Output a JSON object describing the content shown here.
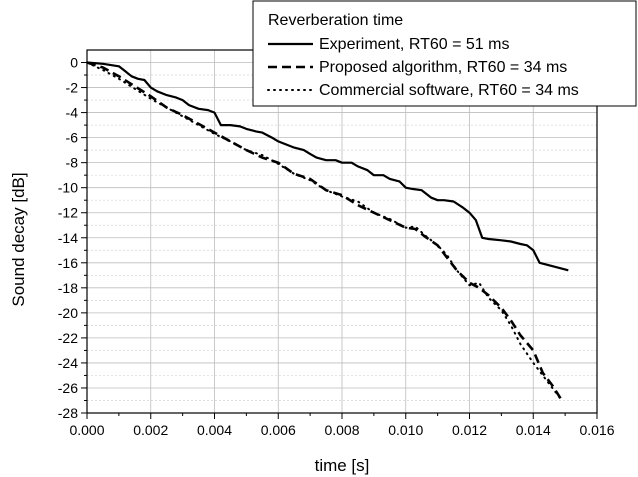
{
  "chart_data": {
    "type": "line",
    "xlabel": "time [s]",
    "ylabel": "Sound decay  [dB]",
    "xlim": [
      0,
      0.016
    ],
    "ylim": [
      -28,
      1
    ],
    "x_ticks": [
      "0.000",
      "0.002",
      "0.004",
      "0.006",
      "0.008",
      "0.010",
      "0.012",
      "0.014",
      "0.016"
    ],
    "y_ticks": [
      "0",
      "-2",
      "-4",
      "-6",
      "-8",
      "-10",
      "-12",
      "-14",
      "-16",
      "-18",
      "-20",
      "-22",
      "-24",
      "-26",
      "-28"
    ],
    "grid": true,
    "legend": {
      "title": "Reverberation time",
      "placement": "top-right"
    },
    "series": [
      {
        "name": "Experiment, RT60 = 51 ms",
        "style": "solid",
        "x": [
          0,
          0.0005,
          0.001,
          0.0012,
          0.0014,
          0.0016,
          0.0018,
          0.002,
          0.0022,
          0.0025,
          0.0028,
          0.003,
          0.0032,
          0.0035,
          0.0038,
          0.004,
          0.0042,
          0.0045,
          0.0048,
          0.005,
          0.0053,
          0.0055,
          0.0058,
          0.006,
          0.0062,
          0.0065,
          0.0068,
          0.007,
          0.0072,
          0.0075,
          0.0078,
          0.008,
          0.0083,
          0.0085,
          0.0088,
          0.009,
          0.0093,
          0.0095,
          0.0098,
          0.01,
          0.0102,
          0.0105,
          0.0108,
          0.011,
          0.0112,
          0.0115,
          0.0118,
          0.012,
          0.0122,
          0.0124,
          0.0126,
          0.013,
          0.0133,
          0.0136,
          0.0138,
          0.014,
          0.0142,
          0.0145,
          0.0148,
          0.0151
        ],
        "y": [
          0,
          -0.1,
          -0.3,
          -0.7,
          -1.1,
          -1.3,
          -1.4,
          -2.0,
          -2.3,
          -2.6,
          -2.8,
          -3.0,
          -3.4,
          -3.7,
          -3.8,
          -4.0,
          -5.0,
          -5.0,
          -5.1,
          -5.3,
          -5.5,
          -5.6,
          -6.0,
          -6.3,
          -6.5,
          -6.8,
          -7.0,
          -7.3,
          -7.6,
          -7.8,
          -7.8,
          -8.0,
          -8.0,
          -8.3,
          -8.6,
          -9.0,
          -9.0,
          -9.3,
          -9.5,
          -10.0,
          -10.1,
          -10.2,
          -10.8,
          -11.0,
          -11.0,
          -11.1,
          -11.6,
          -12.0,
          -12.6,
          -14.0,
          -14.1,
          -14.2,
          -14.3,
          -14.5,
          -14.6,
          -15.0,
          -16.0,
          -16.2,
          -16.4,
          -16.6
        ]
      },
      {
        "name": "Proposed algorithm, RT60 = 34 ms",
        "style": "dashed",
        "x": [
          0,
          0.0005,
          0.001,
          0.0015,
          0.002,
          0.0025,
          0.003,
          0.0035,
          0.004,
          0.0045,
          0.005,
          0.0055,
          0.006,
          0.0065,
          0.007,
          0.0075,
          0.008,
          0.0085,
          0.009,
          0.0095,
          0.01,
          0.0103,
          0.0106,
          0.011,
          0.0113,
          0.0116,
          0.012,
          0.0123,
          0.0126,
          0.013,
          0.0133,
          0.0136,
          0.014,
          0.0143,
          0.0146,
          0.0149
        ],
        "y": [
          0,
          -0.4,
          -1.1,
          -1.9,
          -2.7,
          -3.6,
          -4.2,
          -4.9,
          -5.6,
          -6.3,
          -7.0,
          -7.6,
          -8.0,
          -8.9,
          -9.3,
          -10.2,
          -10.6,
          -11.4,
          -12.0,
          -12.6,
          -13.2,
          -13.3,
          -13.9,
          -14.6,
          -15.6,
          -16.6,
          -17.6,
          -18.0,
          -18.6,
          -19.6,
          -20.6,
          -21.8,
          -23.0,
          -24.8,
          -25.8,
          -27.0
        ]
      },
      {
        "name": "Commercial software, RT60 = 34 ms",
        "style": "dotted",
        "x": [
          0,
          0.0005,
          0.001,
          0.0015,
          0.002,
          0.0025,
          0.003,
          0.0035,
          0.004,
          0.0045,
          0.005,
          0.0055,
          0.006,
          0.0065,
          0.007,
          0.0075,
          0.008,
          0.0085,
          0.009,
          0.0095,
          0.01,
          0.0103,
          0.0106,
          0.011,
          0.0113,
          0.0116,
          0.012,
          0.0123,
          0.0126,
          0.013,
          0.0133,
          0.0136,
          0.014,
          0.0143,
          0.0146,
          0.0149
        ],
        "y": [
          0,
          -0.6,
          -1.3,
          -2.1,
          -2.9,
          -3.6,
          -4.3,
          -5.0,
          -5.7,
          -6.3,
          -7.0,
          -7.4,
          -8.1,
          -8.9,
          -9.4,
          -10.2,
          -10.7,
          -11.1,
          -12.0,
          -12.5,
          -13.2,
          -13.1,
          -13.8,
          -14.6,
          -15.4,
          -16.6,
          -17.8,
          -17.6,
          -18.8,
          -19.8,
          -21.0,
          -22.5,
          -24.0,
          -25.0,
          -26.0,
          -27.0
        ]
      }
    ]
  }
}
